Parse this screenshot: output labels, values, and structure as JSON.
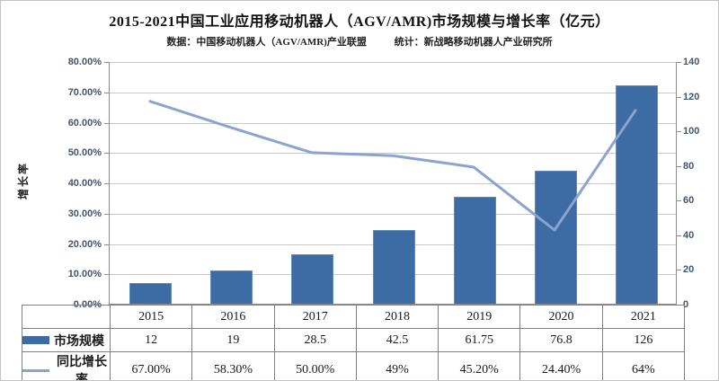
{
  "chart_data": {
    "type": "combo-bar-line",
    "title": "2015-2021中国工业应用移动机器人（AGV/AMR)市场规模与增长率（亿元）",
    "subtitle_left": "数据：中国移动机器人（AGV/AMR)产业联盟",
    "subtitle_right": "统计：新战略移动机器人产业研究所",
    "categories": [
      "2015",
      "2016",
      "2017",
      "2018",
      "2019",
      "2020",
      "2021"
    ],
    "series": [
      {
        "name": "市场规模",
        "type": "bar",
        "axis": "right",
        "values": [
          12,
          19,
          28.5,
          42.5,
          61.75,
          76.8,
          126
        ],
        "labels": [
          "12",
          "19",
          "28.5",
          "42.5",
          "61.75",
          "76.8",
          "126"
        ],
        "color": "#3d6ca5"
      },
      {
        "name": "同比增长率",
        "type": "line",
        "axis": "left",
        "values": [
          67,
          58.3,
          50,
          49,
          45.2,
          24.4,
          64
        ],
        "labels": [
          "67.00%",
          "58.30%",
          "50.00%",
          "49%",
          "45.20%",
          "24.40%",
          "64%"
        ],
        "color": "#8aa3cf"
      }
    ],
    "left_axis": {
      "title": "增长率",
      "min": 0,
      "max": 80,
      "tick_labels": [
        "80.00%",
        "70.00%",
        "60.00%",
        "50.00%",
        "40.00%",
        "30.00%",
        "20.00%",
        "10.00%",
        "0.00%"
      ]
    },
    "right_axis": {
      "min": 0,
      "max": 140,
      "tick_labels": [
        "140",
        "120",
        "100",
        "80",
        "60",
        "40",
        "20",
        "0"
      ]
    },
    "grid": true,
    "legend_position": "table-left"
  }
}
